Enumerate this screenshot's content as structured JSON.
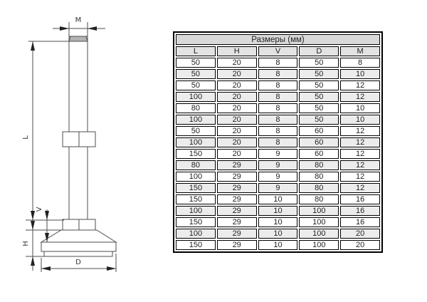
{
  "diagram": {
    "labels": {
      "m": "M",
      "l": "L",
      "v": "V",
      "h": "H",
      "d": "D"
    }
  },
  "table": {
    "title": "Размеры (мм)",
    "columns": [
      "L",
      "H",
      "V",
      "D",
      "M"
    ],
    "rows": [
      [
        "50",
        "20",
        "8",
        "50",
        "8"
      ],
      [
        "50",
        "20",
        "8",
        "50",
        "10"
      ],
      [
        "50",
        "20",
        "8",
        "50",
        "12"
      ],
      [
        "100",
        "20",
        "8",
        "50",
        "12"
      ],
      [
        "80",
        "20",
        "8",
        "50",
        "10"
      ],
      [
        "100",
        "20",
        "8",
        "50",
        "10"
      ],
      [
        "50",
        "20",
        "8",
        "60",
        "12"
      ],
      [
        "100",
        "20",
        "8",
        "60",
        "12"
      ],
      [
        "150",
        "20",
        "9",
        "60",
        "12"
      ],
      [
        "80",
        "29",
        "9",
        "80",
        "12"
      ],
      [
        "100",
        "29",
        "9",
        "80",
        "12"
      ],
      [
        "150",
        "29",
        "9",
        "80",
        "12"
      ],
      [
        "150",
        "29",
        "10",
        "80",
        "16"
      ],
      [
        "100",
        "29",
        "10",
        "100",
        "16"
      ],
      [
        "150",
        "29",
        "10",
        "100",
        "16"
      ],
      [
        "100",
        "29",
        "10",
        "100",
        "20"
      ],
      [
        "150",
        "29",
        "10",
        "100",
        "20"
      ]
    ]
  },
  "colors": {
    "table_title_bg": "#d9d9d9",
    "table_colhead_bg": "#e3e3e3",
    "table_alt_row_bg": "#ececec",
    "drawing_line": "#4d4d4d",
    "arrow_fill": "#222222"
  }
}
